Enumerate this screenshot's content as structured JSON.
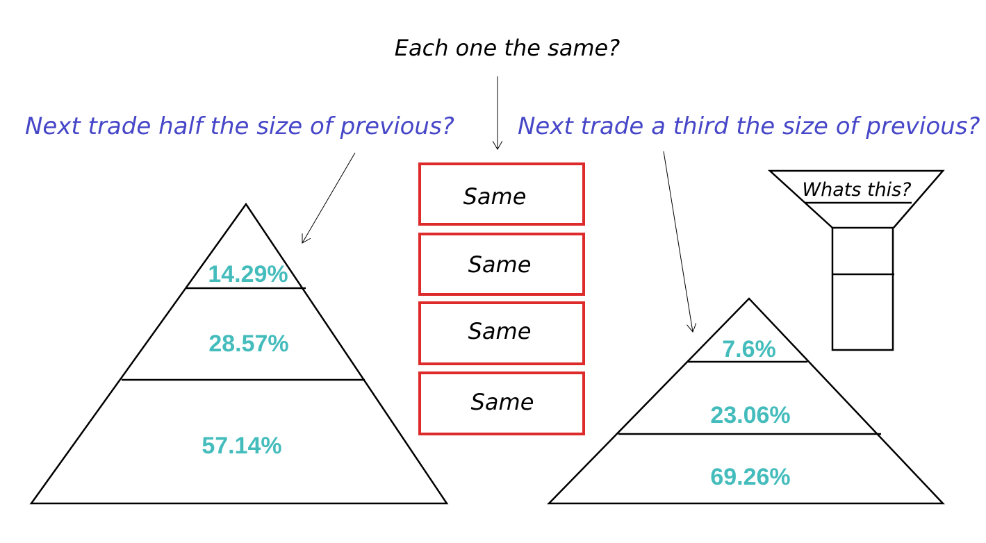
{
  "question_top": "Each one the same?",
  "question_left": "Next trade half the size of previous?",
  "question_right": "Next trade a third the size of previous?",
  "boxes": [
    "Same",
    "Same",
    "Same",
    "Same"
  ],
  "left_pyramid": [
    "14.29%",
    "28.57%",
    "57.14%"
  ],
  "right_pyramid": [
    "7.6%",
    "23.06%",
    "69.26%"
  ],
  "funnel_label": "Whats this?",
  "colors": {
    "question": "#4646c8",
    "percent": "#45bcbc",
    "box_border": "#dd2a2a"
  }
}
